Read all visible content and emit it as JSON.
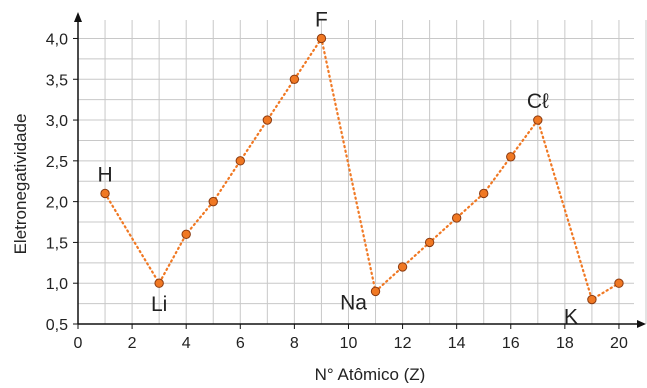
{
  "chart_data": {
    "type": "line",
    "title": "",
    "xlabel": "N° Atômico (Z)",
    "ylabel": "Eletronegatividade",
    "xlim": [
      0,
      21
    ],
    "ylim": [
      0.5,
      4.3
    ],
    "x_ticks": [
      0,
      2,
      4,
      6,
      8,
      10,
      12,
      14,
      16,
      18,
      20
    ],
    "y_ticks": [
      0.5,
      1.0,
      1.5,
      2.0,
      2.5,
      3.0,
      3.5,
      4.0
    ],
    "x_tick_labels": [
      "0",
      "2",
      "4",
      "6",
      "8",
      "10",
      "12",
      "14",
      "16",
      "18",
      "20"
    ],
    "y_tick_labels": [
      "0,5",
      "1,0",
      "1,5",
      "2,0",
      "2,5",
      "3,0",
      "3,5",
      "4,0"
    ],
    "grid": true,
    "legend": "none",
    "series": [
      {
        "x": [
          1,
          3,
          4,
          5,
          6,
          7,
          8,
          9,
          11,
          12,
          13,
          14,
          15,
          16,
          17,
          19,
          20
        ],
        "y": [
          2.1,
          1.0,
          1.6,
          2.0,
          2.5,
          3.0,
          3.5,
          4.0,
          0.9,
          1.2,
          1.5,
          1.8,
          2.1,
          2.55,
          3.0,
          0.8,
          1.0
        ],
        "color": "#f07823",
        "line_style": "dotted",
        "marker_edge_color": "#8a3a10"
      }
    ],
    "annotations": [
      {
        "text": "H",
        "x": 1,
        "y": 2.1,
        "placement": "above"
      },
      {
        "text": "Li",
        "x": 3,
        "y": 1.0,
        "placement": "below"
      },
      {
        "text": "F",
        "x": 9,
        "y": 4.0,
        "placement": "above"
      },
      {
        "text": "Na",
        "x": 11,
        "y": 0.9,
        "placement": "below-left"
      },
      {
        "text": "Cℓ",
        "x": 17,
        "y": 3.0,
        "placement": "above"
      },
      {
        "text": "K",
        "x": 19,
        "y": 0.8,
        "placement": "below-left"
      }
    ]
  }
}
